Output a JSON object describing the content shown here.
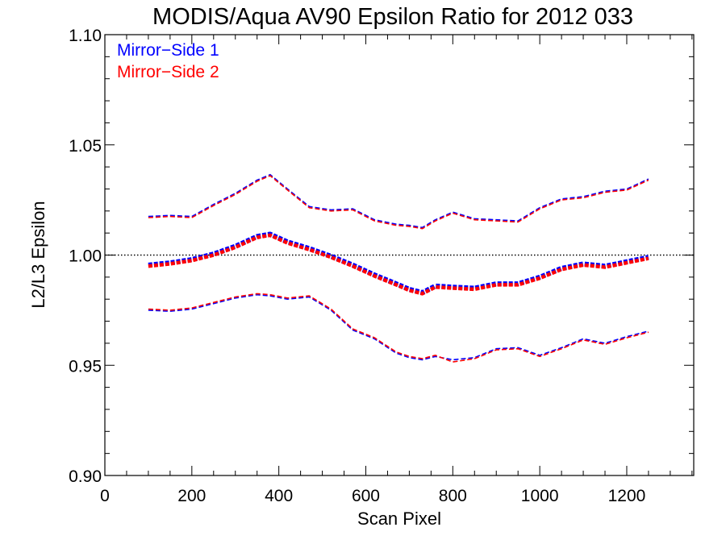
{
  "chart_data": {
    "type": "line",
    "title": "MODIS/Aqua AV90 Epsilon Ratio for 2012 033",
    "xlabel": "Scan Pixel",
    "ylabel": "L2/L3 Epsilon",
    "xlim": [
      0,
      1354
    ],
    "ylim": [
      0.9,
      1.1
    ],
    "x_ticks": [
      0,
      200,
      400,
      600,
      800,
      1000,
      1200
    ],
    "y_ticks": [
      0.9,
      0.95,
      1.0,
      1.05,
      1.1
    ],
    "x_tick_labels": [
      "0",
      "200",
      "400",
      "600",
      "800",
      "1000",
      "1200"
    ],
    "y_tick_labels": [
      "0.90",
      "0.95",
      "1.00",
      "1.05",
      "1.10"
    ],
    "reference_line": 1.0,
    "grid": false,
    "legend_position": "top-left",
    "series": [
      {
        "name": "Mirror−Side 1",
        "color": "#0000ff",
        "x": [
          100,
          150,
          200,
          250,
          300,
          350,
          380,
          420,
          470,
          520,
          570,
          620,
          670,
          700,
          730,
          760,
          800,
          850,
          900,
          950,
          1000,
          1050,
          1100,
          1150,
          1200,
          1250
        ],
        "mean": [
          0.9955,
          0.9965,
          0.998,
          1.0005,
          1.004,
          1.0085,
          1.0095,
          1.006,
          1.003,
          0.9995,
          0.9955,
          0.991,
          0.987,
          0.9845,
          0.983,
          0.986,
          0.9855,
          0.985,
          0.987,
          0.987,
          0.99,
          0.994,
          0.996,
          0.995,
          0.997,
          0.999
        ],
        "upper": [
          1.0175,
          1.018,
          1.0175,
          1.023,
          1.028,
          1.034,
          1.0365,
          1.03,
          1.022,
          1.0205,
          1.021,
          1.016,
          1.014,
          1.0135,
          1.0125,
          1.016,
          1.0195,
          1.0165,
          1.016,
          1.0155,
          1.0215,
          1.0255,
          1.0265,
          1.029,
          1.03,
          1.0345
        ],
        "lower": [
          0.975,
          0.9745,
          0.9755,
          0.978,
          0.9805,
          0.982,
          0.9815,
          0.98,
          0.981,
          0.975,
          0.966,
          0.962,
          0.9555,
          0.9535,
          0.9525,
          0.954,
          0.9525,
          0.9535,
          0.9575,
          0.958,
          0.9545,
          0.958,
          0.962,
          0.96,
          0.963,
          0.9655
        ]
      },
      {
        "name": "Mirror−Side 2",
        "color": "#ff0000",
        "x": [
          100,
          150,
          200,
          250,
          300,
          350,
          380,
          420,
          470,
          520,
          570,
          620,
          670,
          700,
          730,
          760,
          800,
          850,
          900,
          950,
          1000,
          1050,
          1100,
          1150,
          1200,
          1250
        ],
        "mean": [
          0.995,
          0.996,
          0.9975,
          1.0,
          1.0035,
          1.008,
          1.009,
          1.0055,
          1.0025,
          0.999,
          0.995,
          0.9905,
          0.9865,
          0.984,
          0.9825,
          0.9855,
          0.985,
          0.9845,
          0.9865,
          0.9865,
          0.9895,
          0.9935,
          0.9955,
          0.9945,
          0.9965,
          0.9985
        ],
        "upper": [
          1.017,
          1.0175,
          1.017,
          1.0225,
          1.0275,
          1.0335,
          1.036,
          1.0295,
          1.0215,
          1.02,
          1.0205,
          1.0155,
          1.0135,
          1.013,
          1.012,
          1.0155,
          1.019,
          1.016,
          1.0155,
          1.015,
          1.021,
          1.025,
          1.026,
          1.0285,
          1.0295,
          1.034
        ],
        "lower": [
          0.9755,
          0.975,
          0.976,
          0.9785,
          0.981,
          0.9825,
          0.982,
          0.9805,
          0.9815,
          0.9755,
          0.9665,
          0.9625,
          0.956,
          0.954,
          0.953,
          0.9545,
          0.9515,
          0.953,
          0.957,
          0.9575,
          0.954,
          0.9575,
          0.9615,
          0.9595,
          0.9625,
          0.965
        ]
      }
    ]
  }
}
